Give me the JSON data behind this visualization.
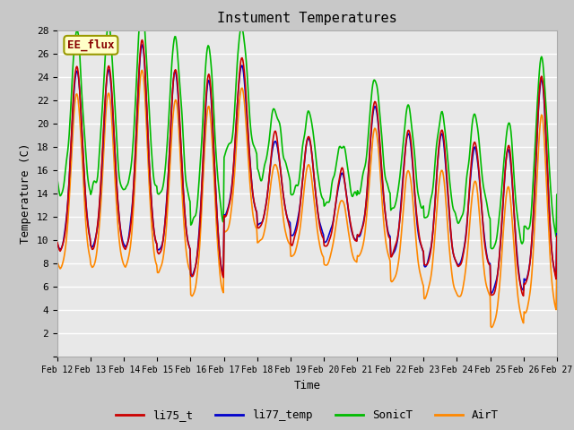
{
  "title": "Instument Temperatures",
  "xlabel": "Time",
  "ylabel": "Temperature (C)",
  "ylim": [
    0,
    28
  ],
  "xlim": [
    0,
    360
  ],
  "annotation_text": "EE_flux",
  "annotation_box_color": "#ffffc8",
  "annotation_border_color": "#999900",
  "annotation_text_color": "#880000",
  "plot_bg_color": "#e8e8e8",
  "fig_bg_color": "#c8c8c8",
  "series": {
    "li75_t": {
      "color": "#cc0000",
      "lw": 1.2
    },
    "li77_temp": {
      "color": "#0000cc",
      "lw": 1.2
    },
    "SonicT": {
      "color": "#00bb00",
      "lw": 1.2
    },
    "AirT": {
      "color": "#ff8800",
      "lw": 1.2
    }
  },
  "xtick_labels": [
    "Feb 12",
    "Feb 13",
    "Feb 14",
    "Feb 15",
    "Feb 16",
    "Feb 17",
    "Feb 18",
    "Feb 19",
    "Feb 20",
    "Feb 21",
    "Feb 22",
    "Feb 23",
    "Feb 24",
    "Feb 25",
    "Feb 26",
    "Feb 27"
  ],
  "xtick_positions": [
    0,
    24,
    48,
    72,
    96,
    120,
    144,
    168,
    192,
    216,
    240,
    264,
    288,
    312,
    336,
    360
  ],
  "ytick_positions": [
    0,
    2,
    4,
    6,
    8,
    10,
    12,
    14,
    16,
    18,
    20,
    22,
    24,
    26,
    28
  ],
  "legend_entries": [
    "li75_t",
    "li77_temp",
    "SonicT",
    "AirT"
  ],
  "legend_colors": [
    "#cc0000",
    "#0000cc",
    "#00bb00",
    "#ff8800"
  ]
}
